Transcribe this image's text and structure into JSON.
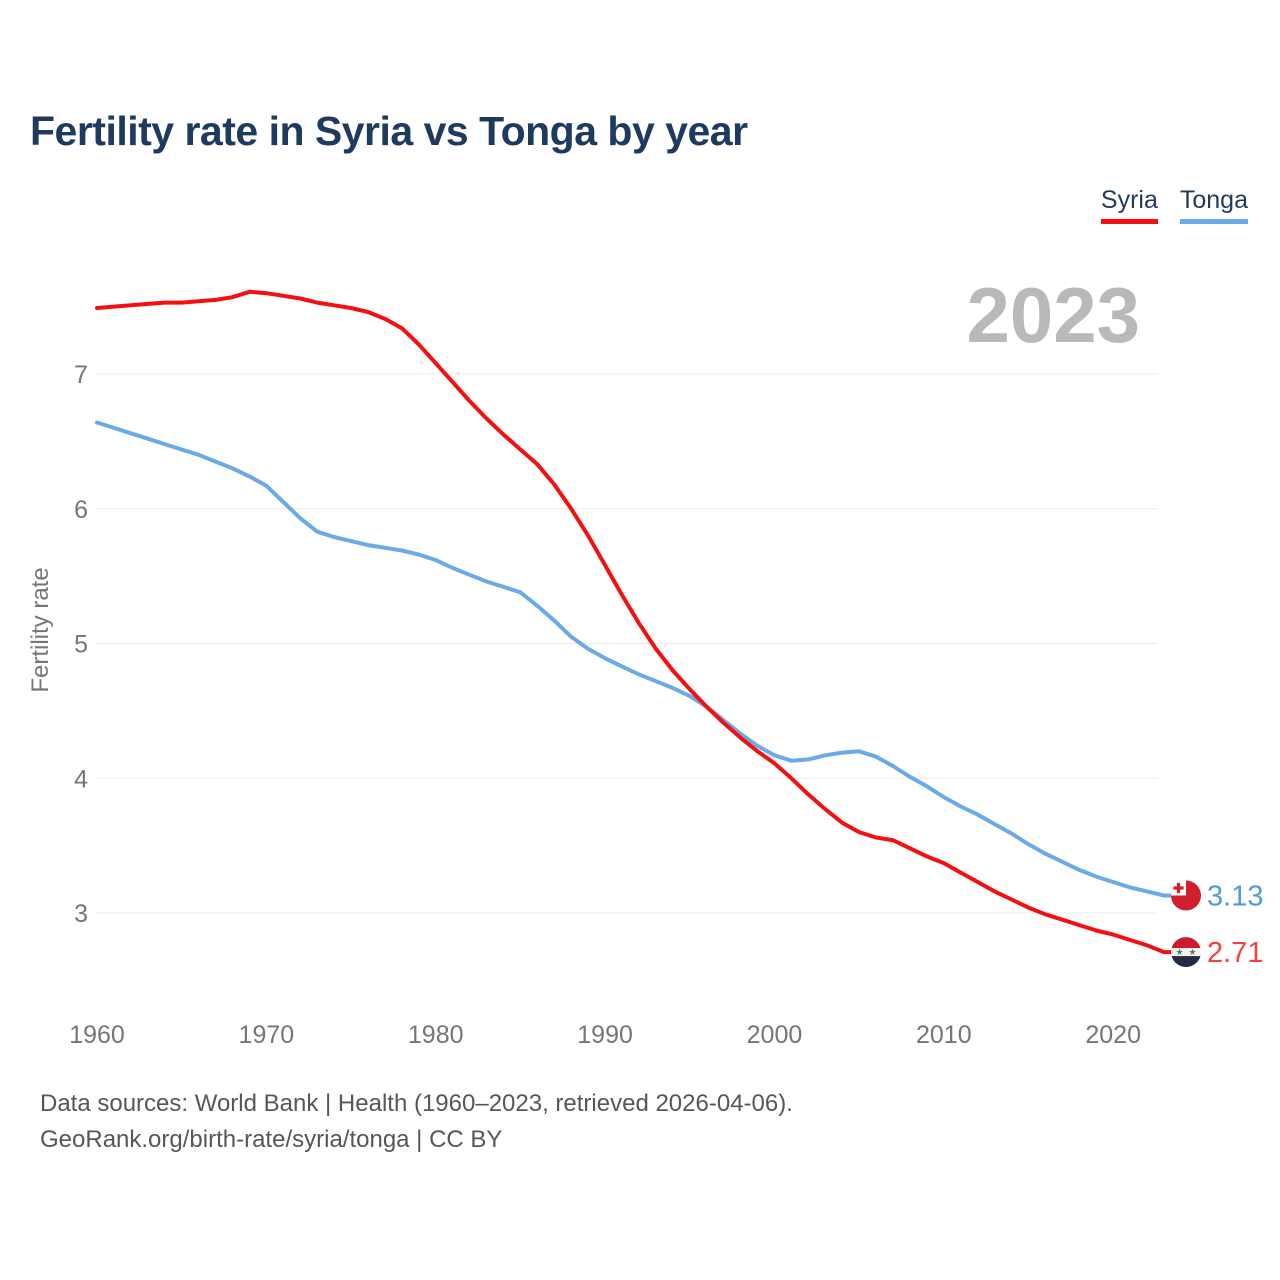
{
  "title": "Fertility rate in Syria vs Tonga by year",
  "big_year_label": "2023",
  "legend": [
    {
      "label": "Syria",
      "color": "#f41011"
    },
    {
      "label": "Tonga",
      "color": "#6aaae6"
    }
  ],
  "y_axis": {
    "label": "Fertility rate",
    "ticks": [
      3,
      4,
      5,
      6,
      7
    ]
  },
  "x_axis": {
    "ticks": [
      1960,
      1970,
      1980,
      1990,
      2000,
      2010,
      2020
    ]
  },
  "end_labels": [
    {
      "series": "Tonga",
      "value": "3.13",
      "text_color": "#4f9bdd",
      "flag": "tonga-flag"
    },
    {
      "series": "Syria",
      "value": "2.71",
      "text_color": "#f5413d",
      "flag": "syria-flag"
    }
  ],
  "footer": {
    "line1": "Data sources: World Bank | Health (1960–2023, retrieved 2026-04-06).",
    "line2": "GeoRank.org/birth-rate/syria/tonga | CC BY"
  },
  "colors": {
    "title_text": "#1e3a5f",
    "axis_text": "#767676",
    "gridline": "#ebebeb",
    "big_year": "#b9b9b9",
    "syria_red": "#f41011",
    "tonga_blue": "#6aaae6"
  },
  "chart_data": {
    "type": "line",
    "title": "Fertility rate in Syria vs Tonga by year",
    "xlabel": "",
    "ylabel": "Fertility rate",
    "xlim": [
      1960,
      2023
    ],
    "ylim": [
      2.6,
      7.8
    ],
    "grid": true,
    "legend_position": "top-right",
    "x": [
      1960,
      1961,
      1962,
      1963,
      1964,
      1965,
      1966,
      1967,
      1968,
      1969,
      1970,
      1971,
      1972,
      1973,
      1974,
      1975,
      1976,
      1977,
      1978,
      1979,
      1980,
      1981,
      1982,
      1983,
      1984,
      1985,
      1986,
      1987,
      1988,
      1989,
      1990,
      1991,
      1992,
      1993,
      1994,
      1995,
      1996,
      1997,
      1998,
      1999,
      2000,
      2001,
      2002,
      2003,
      2004,
      2005,
      2006,
      2007,
      2008,
      2009,
      2010,
      2011,
      2012,
      2013,
      2014,
      2015,
      2016,
      2017,
      2018,
      2019,
      2020,
      2021,
      2022,
      2023
    ],
    "series": [
      {
        "name": "Tonga",
        "color": "#6aaae6",
        "values": [
          6.64,
          6.6,
          6.56,
          6.52,
          6.48,
          6.44,
          6.4,
          6.35,
          6.3,
          6.24,
          6.17,
          6.05,
          5.93,
          5.83,
          5.79,
          5.76,
          5.73,
          5.71,
          5.69,
          5.66,
          5.62,
          5.56,
          5.51,
          5.46,
          5.42,
          5.38,
          5.28,
          5.17,
          5.05,
          4.96,
          4.89,
          4.83,
          4.77,
          4.72,
          4.67,
          4.61,
          4.53,
          4.43,
          4.33,
          4.24,
          4.17,
          4.13,
          4.14,
          4.17,
          4.19,
          4.2,
          4.16,
          4.09,
          4.01,
          3.94,
          3.86,
          3.79,
          3.73,
          3.66,
          3.59,
          3.51,
          3.44,
          3.38,
          3.32,
          3.27,
          3.23,
          3.19,
          3.16,
          3.13
        ]
      },
      {
        "name": "Syria",
        "color": "#f41011",
        "values": [
          7.49,
          7.5,
          7.51,
          7.52,
          7.53,
          7.53,
          7.54,
          7.55,
          7.57,
          7.61,
          7.6,
          7.58,
          7.56,
          7.53,
          7.51,
          7.49,
          7.46,
          7.41,
          7.34,
          7.22,
          7.08,
          6.94,
          6.8,
          6.67,
          6.55,
          6.44,
          6.33,
          6.18,
          6.0,
          5.8,
          5.58,
          5.36,
          5.15,
          4.96,
          4.8,
          4.66,
          4.53,
          4.41,
          4.3,
          4.2,
          4.11,
          4.0,
          3.88,
          3.77,
          3.67,
          3.6,
          3.56,
          3.54,
          3.48,
          3.42,
          3.37,
          3.3,
          3.23,
          3.16,
          3.1,
          3.04,
          2.99,
          2.95,
          2.91,
          2.87,
          2.84,
          2.8,
          2.76,
          2.71
        ]
      }
    ]
  }
}
